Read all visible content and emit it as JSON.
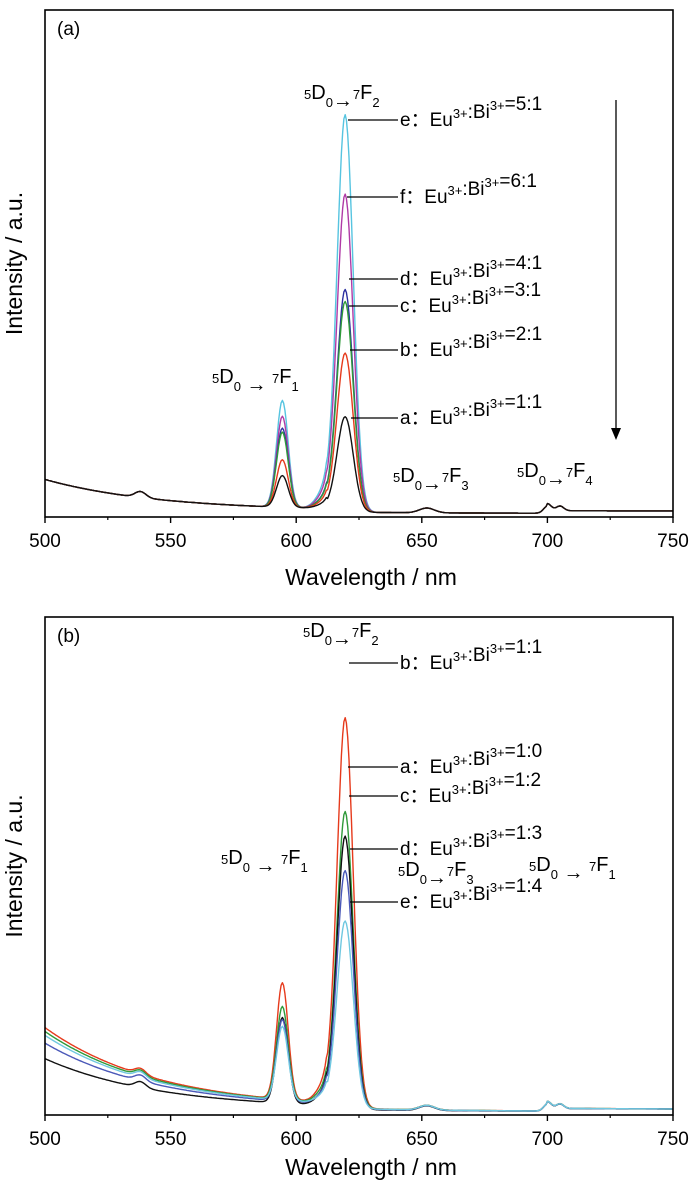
{
  "chart_data": [
    {
      "type": "line",
      "panel_label": "(a)",
      "xlabel": "Wavelength / nm",
      "ylabel": "Intensity / a.u.",
      "xlim": [
        500,
        750
      ],
      "x_ticks": [
        "500",
        "550",
        "600",
        "650",
        "700",
        "750"
      ],
      "annotations": {
        "t2": {
          "main": "D",
          "sup1": "5",
          "sub1": "0",
          "arrow": "→",
          "sup2": "7",
          "main2": "F",
          "sub2": "2"
        },
        "t1": {
          "main": "D",
          "sup1": "5",
          "sub1": "0",
          "arrow": " → ",
          "sup2": "7",
          "main2": "F",
          "sub2": "1"
        },
        "t3": {
          "main": "D",
          "sup1": "5",
          "sub1": "0",
          "arrow": "→",
          "sup2": "7",
          "main2": "F",
          "sub2": "3"
        },
        "t4": {
          "main": "D",
          "sup1": "5",
          "sub1": "0",
          "arrow": "→",
          "sup2": "7",
          "main2": "F",
          "sub2": "4"
        }
      },
      "series": [
        {
          "name": "e：Eu³⁺:Bi³⁺=5:1",
          "label_parts": [
            "e：Eu",
            "3+",
            ":Bi",
            "3+",
            "=5:1"
          ],
          "color": "#56c4e0",
          "peak": 1.0,
          "f1": 0.27,
          "base": 0.08
        },
        {
          "name": "f：Eu³⁺:Bi³⁺=6:1",
          "label_parts": [
            "f：Eu",
            "3+",
            ":Bi",
            "3+",
            "=6:1"
          ],
          "color": "#b03aa6",
          "peak": 0.8,
          "f1": 0.23,
          "base": 0.08
        },
        {
          "name": "d：Eu³⁺:Bi³⁺=4:1",
          "label_parts": [
            "d：Eu",
            "3+",
            ":Bi",
            "3+",
            "=4:1"
          ],
          "color": "#2b2fa0",
          "peak": 0.56,
          "f1": 0.2,
          "base": 0.08
        },
        {
          "name": "c：Eu³⁺:Bi³⁺=3:1",
          "label_parts": [
            "c：Eu",
            "3+",
            ":Bi",
            "3+",
            "=3:1"
          ],
          "color": "#2f9a3a",
          "peak": 0.53,
          "f1": 0.19,
          "base": 0.08
        },
        {
          "name": "b：Eu³⁺:Bi³⁺=2:1",
          "label_parts": [
            "b：Eu",
            "3+",
            ":Bi",
            "3+",
            "=2:1"
          ],
          "color": "#e63a1c",
          "peak": 0.4,
          "f1": 0.12,
          "base": 0.08
        },
        {
          "name": "a：Eu³⁺:Bi³⁺=1:1",
          "label_parts": [
            "a：Eu",
            "3+",
            ":Bi",
            "3+",
            "=1:1"
          ],
          "color": "#111111",
          "peak": 0.24,
          "f1": 0.08,
          "base": 0.08
        }
      ]
    },
    {
      "type": "line",
      "panel_label": "(b)",
      "xlabel": "Wavelength / nm",
      "ylabel": "Intensity / a.u.",
      "xlim": [
        500,
        750
      ],
      "x_ticks": [
        "500",
        "550",
        "600",
        "650",
        "700",
        "750"
      ],
      "annotations": {
        "t2": {
          "main": "D",
          "sup1": "5",
          "sub1": "0",
          "arrow": "→",
          "sup2": "7",
          "main2": "F",
          "sub2": "2"
        },
        "t1": {
          "main": "D",
          "sup1": "5",
          "sub1": "0",
          "arrow": " → ",
          "sup2": "7",
          "main2": "F",
          "sub2": "1"
        },
        "t3": {
          "main": "D",
          "sup1": "5",
          "sub1": "0",
          "arrow": "→",
          "sup2": "7",
          "main2": "F",
          "sub2": "3"
        },
        "t4": {
          "main": "D",
          "sup1": "5",
          "sub1": "0",
          "arrow": " → ",
          "sup2": "7",
          "main2": "F",
          "sub2": "1"
        }
      },
      "series": [
        {
          "name": "b：Eu³⁺:Bi³⁺=1:1",
          "label_parts": [
            "b：Eu",
            "3+",
            ":Bi",
            "3+",
            "=1:1"
          ],
          "color": "#e63a1c",
          "peak": 1.0,
          "f1": 0.3,
          "base": 0.21
        },
        {
          "name": "a：Eu³⁺:Bi³⁺=1:0",
          "label_parts": [
            "a：Eu",
            "3+",
            ":Bi",
            "3+",
            "=1:0"
          ],
          "color": "#2f9a3a",
          "peak": 0.76,
          "f1": 0.24,
          "base": 0.2
        },
        {
          "name": "c：Eu³⁺:Bi³⁺=1:2",
          "label_parts": [
            "c：Eu",
            "3+",
            ":Bi",
            "3+",
            "=1:2"
          ],
          "color": "#111111",
          "peak": 0.7,
          "f1": 0.22,
          "base": 0.13
        },
        {
          "name": "d：Eu³⁺:Bi³⁺=1:3",
          "label_parts": [
            "d：Eu",
            "3+",
            ":Bi",
            "3+",
            "=1:3"
          ],
          "color": "#4a58b8",
          "peak": 0.61,
          "f1": 0.21,
          "base": 0.17
        },
        {
          "name": "e：Eu³⁺:Bi³⁺=1:4",
          "label_parts": [
            "e：Eu",
            "3+",
            ":Bi",
            "3+",
            "=1:4"
          ],
          "color": "#6fc8e0",
          "peak": 0.48,
          "f1": 0.19,
          "base": 0.19
        }
      ]
    }
  ]
}
